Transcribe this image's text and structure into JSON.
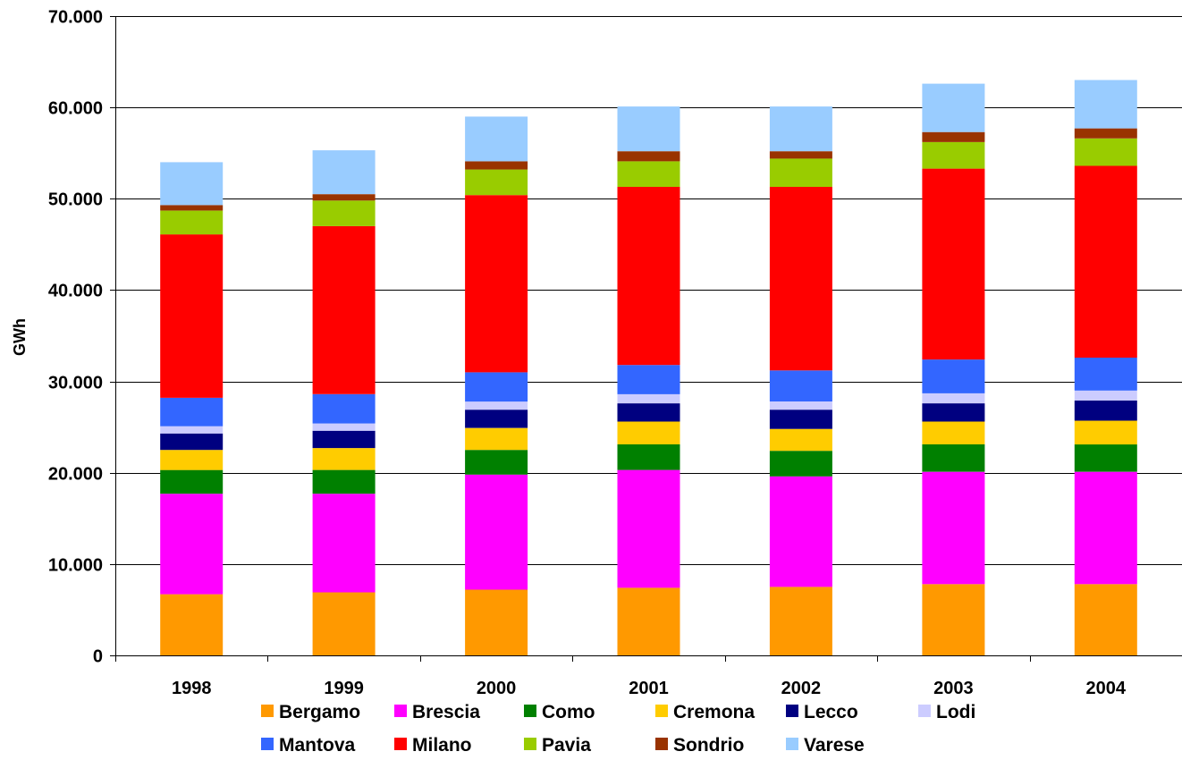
{
  "chart_data": {
    "type": "bar",
    "stacked": true,
    "title": "",
    "xlabel": "",
    "ylabel": "GWh",
    "ylim": [
      0,
      70000
    ],
    "yticks": [
      0,
      10000,
      20000,
      30000,
      40000,
      50000,
      60000,
      70000
    ],
    "ytick_labels": [
      "0",
      "10.000",
      "20.000",
      "30.000",
      "40.000",
      "50.000",
      "60.000",
      "70.000"
    ],
    "grid": true,
    "legend_position": "bottom",
    "categories": [
      "1998",
      "1999",
      "2000",
      "2001",
      "2002",
      "2003",
      "2004"
    ],
    "series": [
      {
        "name": "Bergamo",
        "color": "#FF9900",
        "values": [
          6700,
          6900,
          7200,
          7400,
          7500,
          7800,
          7800
        ]
      },
      {
        "name": "Brescia",
        "color": "#FF00FF",
        "values": [
          11000,
          10800,
          12600,
          12900,
          12100,
          12300,
          12300
        ]
      },
      {
        "name": "Como",
        "color": "#008000",
        "values": [
          2600,
          2600,
          2700,
          2800,
          2800,
          3000,
          3000
        ]
      },
      {
        "name": "Cremona",
        "color": "#FFCC00",
        "values": [
          2200,
          2400,
          2400,
          2500,
          2400,
          2500,
          2600
        ]
      },
      {
        "name": "Lecco",
        "color": "#000080",
        "values": [
          1800,
          1900,
          2000,
          2000,
          2100,
          2000,
          2200
        ]
      },
      {
        "name": "Lodi",
        "color": "#CCCCFF",
        "values": [
          800,
          800,
          900,
          1000,
          900,
          1100,
          1100
        ]
      },
      {
        "name": "Mantova",
        "color": "#3366FF",
        "values": [
          3100,
          3200,
          3200,
          3200,
          3400,
          3700,
          3600
        ]
      },
      {
        "name": "Milano",
        "color": "#FF0000",
        "values": [
          17900,
          18400,
          19400,
          19500,
          20100,
          20900,
          21000
        ]
      },
      {
        "name": "Pavia",
        "color": "#99CC00",
        "values": [
          2600,
          2800,
          2800,
          2800,
          3100,
          2900,
          3000
        ]
      },
      {
        "name": "Sondrio",
        "color": "#993300",
        "values": [
          600,
          700,
          900,
          1100,
          800,
          1100,
          1100
        ]
      },
      {
        "name": "Varese",
        "color": "#99CCFF",
        "values": [
          4700,
          4800,
          4900,
          4900,
          4900,
          5300,
          5300
        ]
      }
    ]
  }
}
